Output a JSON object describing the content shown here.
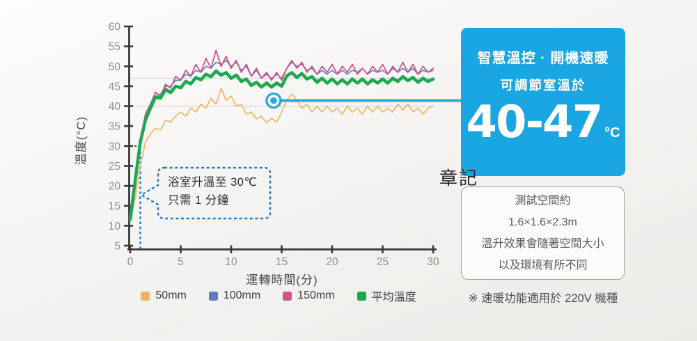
{
  "watermark": "章記",
  "footnote": "※ 速暖功能適用於 220V 機種",
  "highlight_card": {
    "line1": "智慧溫控 · 開機速暖",
    "line2": "可調節室溫於",
    "range": "40-47",
    "unit": "°C",
    "background": "#19A6E2"
  },
  "info_card": {
    "lines": [
      "測試空間約",
      "1.6×1.6×2.3m",
      "溫升效果會隨著空間大小",
      "以及環境有所不同"
    ]
  },
  "chart_data": {
    "type": "line",
    "title": "",
    "xlabel": "運轉時間(分)",
    "ylabel": "溫度(°C)",
    "xlim": [
      0,
      30
    ],
    "ylim": [
      5,
      60
    ],
    "x_ticks": [
      0,
      5,
      10,
      15,
      20,
      25,
      30
    ],
    "y_ticks": [
      60,
      55,
      50,
      45,
      40,
      35,
      30,
      25,
      20,
      15,
      10,
      5
    ],
    "grid_y": [
      47,
      40
    ],
    "grid_color": "#dbdad8",
    "legend_position": "bottom",
    "x_start": 0,
    "x_step": 0.5,
    "annotation_callout": {
      "line1": "浴室升溫至 30℃",
      "line2": "只需 1 分鐘",
      "anchor_x": 1,
      "anchor_y": 30,
      "dash_color": "#1E79CE"
    },
    "highlight_point": {
      "x": 14.2,
      "y": 41.4,
      "color": "#29A9E0"
    },
    "series": [
      {
        "name": "50mm",
        "color": "#EFB45A",
        "width": 1.6,
        "values": [
          11.5,
          17,
          25,
          31,
          33,
          34.5,
          34,
          36.5,
          36,
          37.5,
          38.5,
          37.5,
          39.5,
          38.5,
          40.5,
          39.5,
          42,
          40.5,
          44.5,
          41.5,
          42.5,
          40,
          40.5,
          38,
          38.5,
          36.8,
          37.5,
          35.8,
          37,
          36,
          38.5,
          41.5,
          43,
          41.5,
          39.5,
          40.5,
          38.5,
          40,
          38.5,
          40,
          38.5,
          39.5,
          38,
          40,
          38.5,
          39.5,
          38,
          40,
          38.5,
          40,
          38.5,
          39.5,
          38.5,
          40.5,
          39,
          40.5,
          38.5,
          39.5,
          38,
          39.5,
          40
        ]
      },
      {
        "name": "100mm",
        "color": "#5E7CC0",
        "width": 1.6,
        "values": [
          12,
          21,
          30.5,
          37,
          40,
          42.5,
          43,
          45,
          45,
          46.5,
          46.5,
          48,
          47.5,
          49,
          48.5,
          50,
          49.5,
          51,
          50.5,
          51.5,
          50,
          51,
          49,
          50,
          47.5,
          49,
          47,
          48,
          47,
          48,
          47,
          49.5,
          51,
          50,
          50.5,
          49,
          49.5,
          48,
          49,
          48,
          49,
          48,
          49,
          48,
          49,
          48.5,
          49.5,
          48,
          49,
          48.5,
          49,
          48,
          49.5,
          48.5,
          49.5,
          48.5,
          49.5,
          48,
          49,
          48.5,
          49
        ]
      },
      {
        "name": "150mm",
        "color": "#D1538A",
        "width": 1.8,
        "values": [
          12,
          22,
          31.5,
          38,
          40.5,
          43.5,
          42.5,
          45.5,
          44.5,
          47.5,
          46.5,
          49,
          47.5,
          50.5,
          48.5,
          52,
          49.5,
          54,
          50,
          52.5,
          49.5,
          51.5,
          48.5,
          50.5,
          47.5,
          49.5,
          47,
          48.5,
          46.5,
          48.5,
          46.5,
          49.5,
          51.5,
          49.5,
          51,
          48.5,
          50,
          48,
          50,
          48.5,
          50.5,
          48,
          50,
          48.5,
          50.5,
          48,
          49.5,
          48,
          50,
          48.5,
          50.5,
          48,
          50,
          48.5,
          51,
          48.5,
          50.5,
          48,
          50,
          48.5,
          49.5
        ]
      },
      {
        "name": "平均溫度",
        "color": "#1CA850",
        "width": 4.6,
        "values": [
          11.5,
          21.5,
          31,
          36.5,
          39.5,
          42.3,
          42,
          44.2,
          43.4,
          45,
          44.6,
          46.2,
          45.6,
          47.2,
          46.6,
          48,
          47.4,
          48.8,
          47.8,
          48.4,
          47,
          47.8,
          46.2,
          46.8,
          45.2,
          46,
          44.8,
          45.8,
          44.8,
          45.8,
          45,
          47.6,
          48.4,
          47.2,
          48.2,
          46.8,
          47.4,
          46,
          47,
          45.8,
          46.8,
          45.6,
          46.6,
          45.6,
          46.8,
          45.8,
          46.8,
          45.6,
          46.6,
          45.8,
          46.8,
          45.8,
          47,
          46.2,
          47.4,
          46.4,
          47.2,
          46,
          47,
          46.2,
          46.8
        ]
      }
    ]
  }
}
